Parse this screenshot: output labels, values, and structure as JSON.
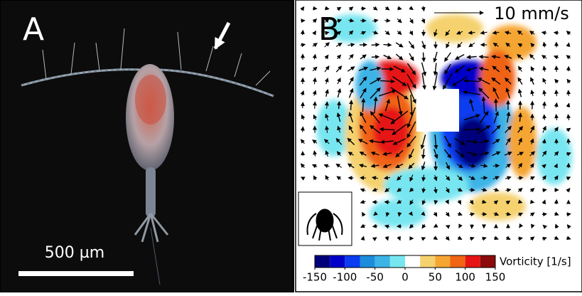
{
  "panels": [
    {
      "label": "A",
      "scale_bar": "500 µm"
    },
    {
      "label": "B",
      "arrow_scale": "10 mm/s",
      "colorbar": {
        "label": "Vorticity [1/s]",
        "bins": [
          -150,
          -125,
          -100,
          -75,
          -50,
          -25,
          0,
          25,
          50,
          75,
          100,
          125,
          150
        ],
        "colors": [
          "#00007a",
          "#0000c8",
          "#0a3cf0",
          "#1e8cdc",
          "#3cb4e6",
          "#78e6f0",
          "#ffffff",
          "#f5d26e",
          "#f5a532",
          "#f06414",
          "#e61414",
          "#8c0a0a"
        ],
        "ticks": [
          -150,
          -100,
          -50,
          0,
          50,
          100,
          150
        ]
      }
    }
  ]
}
